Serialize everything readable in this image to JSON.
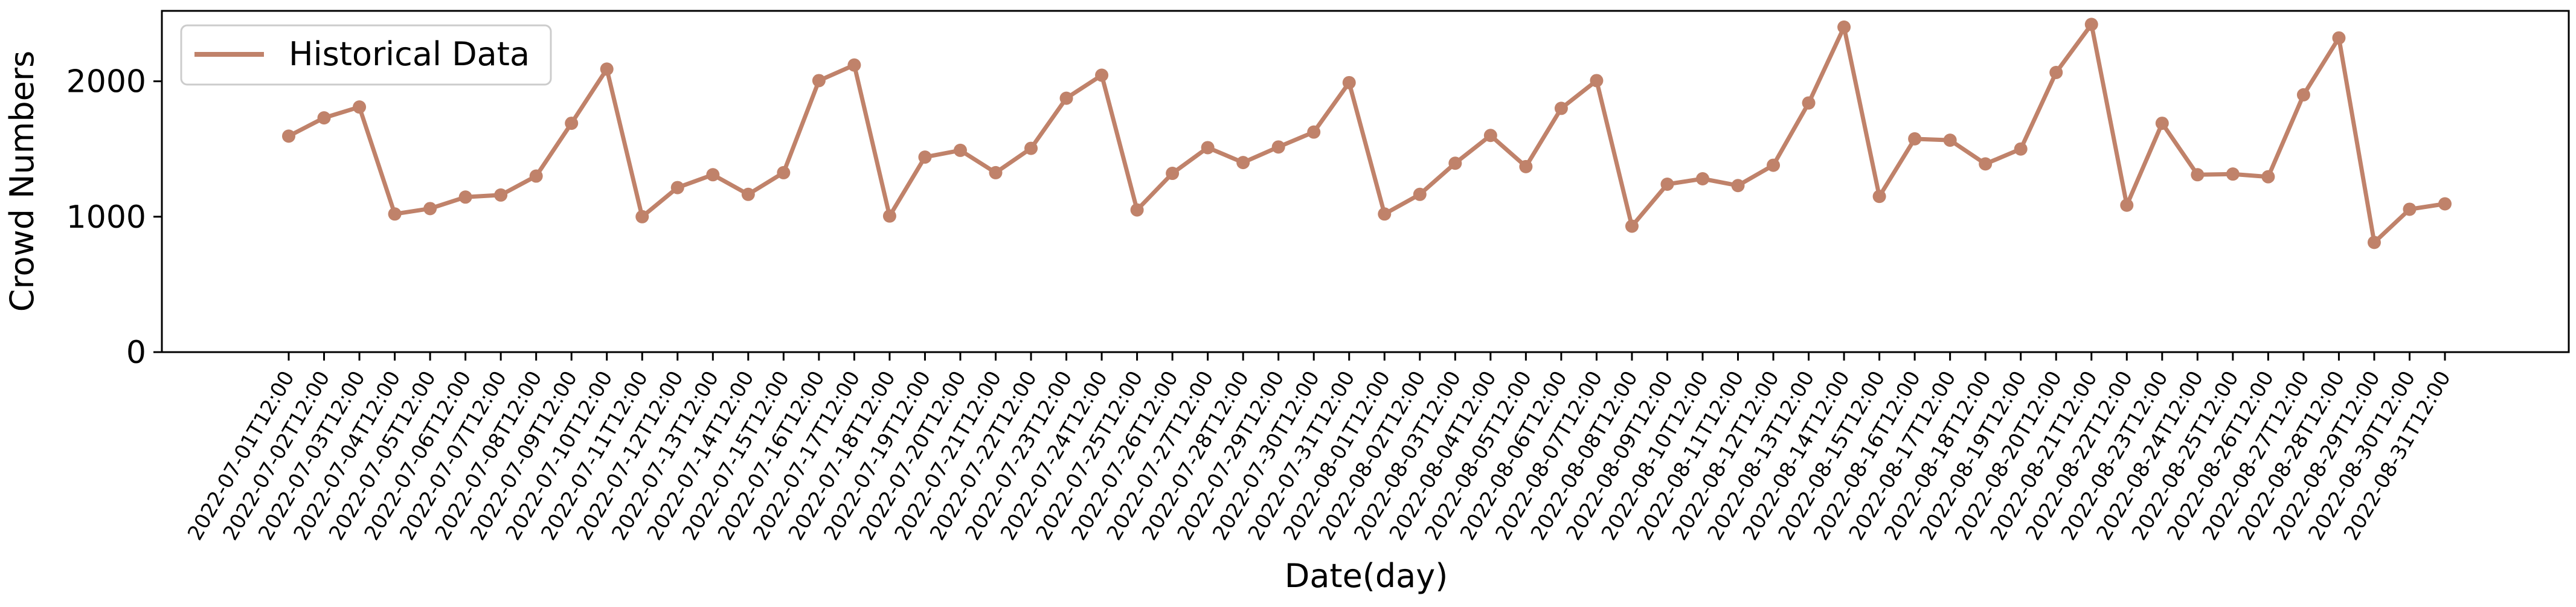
{
  "chart_data": {
    "type": "line",
    "title": "",
    "xlabel": "Date(day)",
    "ylabel": "Crowd Numbers",
    "ylim": [
      0,
      2520
    ],
    "yticks": [
      0,
      1000,
      2000
    ],
    "grid": false,
    "legend_position": "top-left",
    "color": "#c0826a",
    "x": [
      "2022-07-01T12:00",
      "2022-07-02T12:00",
      "2022-07-03T12:00",
      "2022-07-04T12:00",
      "2022-07-05T12:00",
      "2022-07-06T12:00",
      "2022-07-07T12:00",
      "2022-07-08T12:00",
      "2022-07-09T12:00",
      "2022-07-10T12:00",
      "2022-07-11T12:00",
      "2022-07-12T12:00",
      "2022-07-13T12:00",
      "2022-07-14T12:00",
      "2022-07-15T12:00",
      "2022-07-16T12:00",
      "2022-07-17T12:00",
      "2022-07-18T12:00",
      "2022-07-19T12:00",
      "2022-07-20T12:00",
      "2022-07-21T12:00",
      "2022-07-22T12:00",
      "2022-07-23T12:00",
      "2022-07-24T12:00",
      "2022-07-25T12:00",
      "2022-07-26T12:00",
      "2022-07-27T12:00",
      "2022-07-28T12:00",
      "2022-07-29T12:00",
      "2022-07-30T12:00",
      "2022-07-31T12:00",
      "2022-08-01T12:00",
      "2022-08-02T12:00",
      "2022-08-03T12:00",
      "2022-08-04T12:00",
      "2022-08-05T12:00",
      "2022-08-06T12:00",
      "2022-08-07T12:00",
      "2022-08-08T12:00",
      "2022-08-09T12:00",
      "2022-08-10T12:00",
      "2022-08-11T12:00",
      "2022-08-12T12:00",
      "2022-08-13T12:00",
      "2022-08-14T12:00",
      "2022-08-15T12:00",
      "2022-08-16T12:00",
      "2022-08-17T12:00",
      "2022-08-18T12:00",
      "2022-08-19T12:00",
      "2022-08-20T12:00",
      "2022-08-21T12:00",
      "2022-08-22T12:00",
      "2022-08-23T12:00",
      "2022-08-24T12:00",
      "2022-08-25T12:00",
      "2022-08-26T12:00",
      "2022-08-27T12:00",
      "2022-08-28T12:00",
      "2022-08-29T12:00",
      "2022-08-30T12:00",
      "2022-08-31T12:00"
    ],
    "series": [
      {
        "name": "Historical Data",
        "values": [
          1595,
          1730,
          1810,
          1020,
          1060,
          1145,
          1160,
          1300,
          1690,
          2090,
          1000,
          1215,
          1310,
          1165,
          1325,
          2005,
          2120,
          1005,
          1440,
          1490,
          1325,
          1505,
          1875,
          2045,
          1050,
          1320,
          1510,
          1400,
          1515,
          1625,
          1990,
          1020,
          1165,
          1395,
          1600,
          1370,
          1800,
          2005,
          930,
          1240,
          1280,
          1230,
          1380,
          1840,
          2400,
          1150,
          1575,
          1565,
          1390,
          1500,
          2065,
          2420,
          1085,
          1690,
          1310,
          1315,
          1295,
          1900,
          2320,
          810,
          1055,
          1095
        ]
      }
    ]
  }
}
